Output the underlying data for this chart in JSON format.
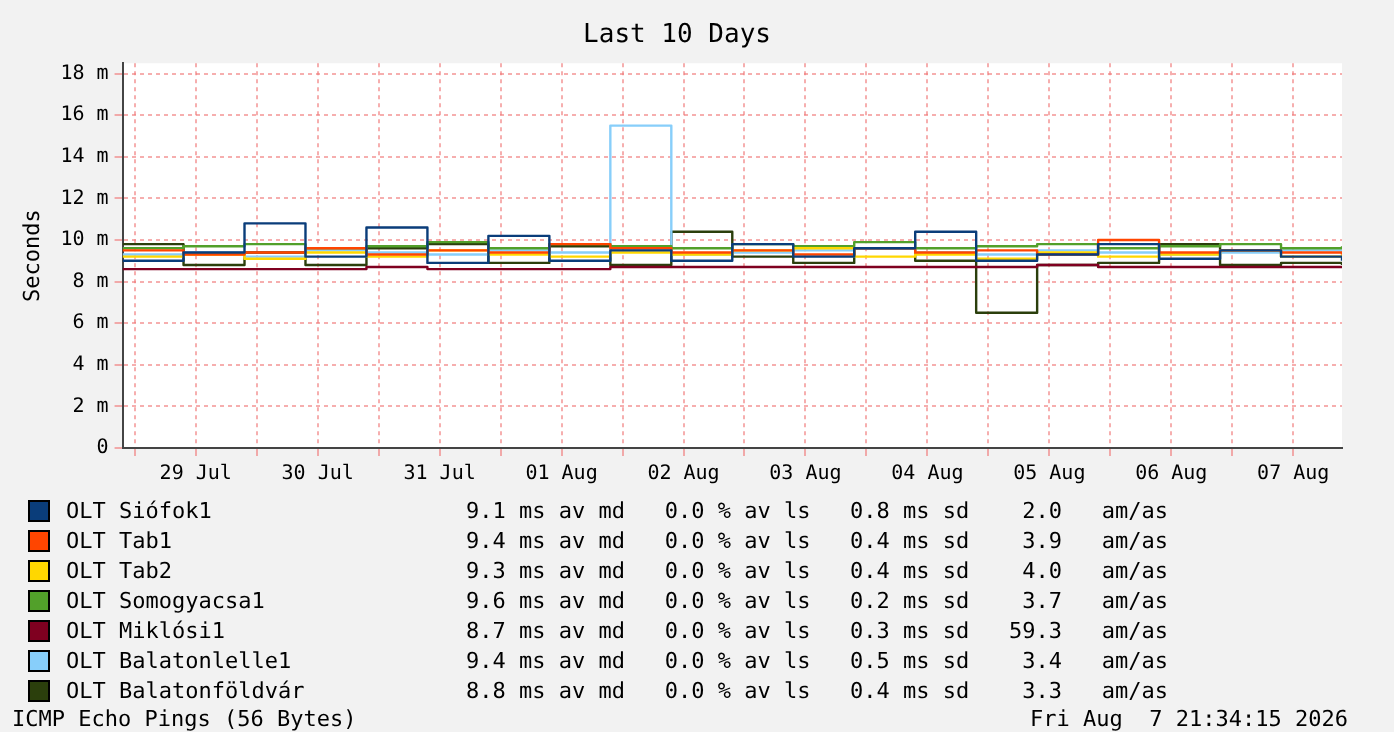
{
  "chart_data": {
    "type": "step",
    "title": "Last 10 Days",
    "ylabel": "Seconds",
    "x": [
      "--07-28T21:36",
      "--07-29T09:36",
      "--07-29T21:36",
      "--07-30T09:36",
      "--07-30T21:36",
      "--07-31T09:36",
      "--07-31T21:36",
      "--08-01T09:36",
      "--08-01T21:36",
      "--08-02T09:36",
      "--08-02T21:36",
      "--08-03T09:36",
      "--08-03T21:36",
      "--08-04T09:36",
      "--08-04T21:36",
      "--08-05T09:36",
      "--08-05T21:36",
      "--08-06T09:36",
      "--08-06T21:36",
      "--08-07T09:36",
      "--08-07T21:36"
    ],
    "xlim": [
      "--07-28T21:36",
      "--08-07T21:36"
    ],
    "xticks": [
      {
        "value": "--07-29",
        "label": null
      },
      {
        "value": "--07-29T12:00",
        "label": "29 Jul"
      },
      {
        "value": "--07-30",
        "label": null
      },
      {
        "value": "--07-30T12:00",
        "label": "30 Jul"
      },
      {
        "value": "--07-31",
        "label": null
      },
      {
        "value": "--07-31T12:00",
        "label": "31 Jul"
      },
      {
        "value": "--08-01",
        "label": null
      },
      {
        "value": "--08-01T12:00",
        "label": "01 Aug"
      },
      {
        "value": "--08-02",
        "label": null
      },
      {
        "value": "--08-02T12:00",
        "label": "02 Aug"
      },
      {
        "value": "--08-03",
        "label": null
      },
      {
        "value": "--08-03T12:00",
        "label": "03 Aug"
      },
      {
        "value": "--08-04",
        "label": null
      },
      {
        "value": "--08-04T12:00",
        "label": "04 Aug"
      },
      {
        "value": "--08-05",
        "label": null
      },
      {
        "value": "--08-05T12:00",
        "label": "05 Aug"
      },
      {
        "value": "--08-06",
        "label": null
      },
      {
        "value": "--08-06T12:00",
        "label": "06 Aug"
      },
      {
        "value": "--08-07",
        "label": null
      },
      {
        "value": "--08-07T12:00",
        "label": "07 Aug"
      }
    ],
    "ylim": [
      0,
      18.5
    ],
    "yticks": [
      0,
      {
        "value": 2,
        "label": "2 m"
      },
      {
        "value": 4,
        "label": "4 m"
      },
      {
        "value": 6,
        "label": "6 m"
      },
      {
        "value": 8,
        "label": "8 m"
      },
      {
        "value": 10,
        "label": "10 m"
      },
      {
        "value": 12,
        "label": "12 m"
      },
      {
        "value": 14,
        "label": "14 m"
      },
      {
        "value": 16,
        "label": "16 m"
      },
      {
        "value": 18,
        "label": "18 m"
      }
    ],
    "grid": true,
    "legend": "bottom",
    "marker": "none",
    "line_style": "solid",
    "series": [
      {
        "name": "OLT Siófok1",
        "color": "#0a3d7a",
        "values": [
          9.0,
          9.4,
          10.8,
          9.2,
          10.6,
          8.9,
          10.2,
          9.0,
          9.5,
          9.0,
          9.8,
          9.2,
          9.6,
          10.4,
          9.0,
          9.3,
          9.8,
          9.1,
          9.5,
          9.2,
          9.0
        ]
      },
      {
        "name": "OLT Tab1",
        "color": "#ff4500",
        "values": [
          9.5,
          9.3,
          9.4,
          9.6,
          9.3,
          9.5,
          9.4,
          9.8,
          9.6,
          9.4,
          9.5,
          9.3,
          9.6,
          9.4,
          9.5,
          9.3,
          10.0,
          9.4,
          9.5,
          9.4,
          9.3
        ]
      },
      {
        "name": "OLT Tab2",
        "color": "#ffd700",
        "values": [
          9.2,
          9.3,
          9.1,
          9.4,
          9.2,
          9.5,
          9.3,
          9.2,
          9.4,
          9.3,
          9.5,
          9.6,
          9.2,
          9.3,
          9.1,
          9.4,
          9.2,
          9.3,
          9.5,
          9.2,
          9.3
        ]
      },
      {
        "name": "OLT Somogyacsa1",
        "color": "#52a02a",
        "values": [
          9.6,
          9.7,
          9.8,
          9.6,
          9.7,
          9.9,
          9.6,
          9.8,
          9.7,
          9.6,
          9.8,
          9.7,
          9.9,
          9.6,
          9.7,
          9.8,
          9.6,
          9.7,
          9.8,
          9.6,
          9.7
        ]
      },
      {
        "name": "OLT Miklósi1",
        "color": "#7f0020",
        "values": [
          8.6,
          8.6,
          8.6,
          8.6,
          8.7,
          8.6,
          8.6,
          8.6,
          8.7,
          8.7,
          8.7,
          8.7,
          8.7,
          8.7,
          8.7,
          8.8,
          8.7,
          8.7,
          8.7,
          8.7,
          8.7
        ]
      },
      {
        "name": "OLT Balatonlelle1",
        "color": "#87cefa",
        "values": [
          9.3,
          9.4,
          9.2,
          9.5,
          9.4,
          9.3,
          9.5,
          9.4,
          15.5,
          9.3,
          9.4,
          9.5,
          9.6,
          9.4,
          9.3,
          9.5,
          9.4,
          9.3,
          9.4,
          9.5,
          9.4
        ]
      },
      {
        "name": "OLT Balatonföldvár",
        "color": "#2b3f0c",
        "values": [
          9.8,
          8.8,
          9.4,
          8.8,
          9.6,
          9.8,
          8.9,
          9.7,
          8.8,
          10.4,
          9.2,
          8.9,
          9.6,
          9.0,
          6.5,
          8.8,
          8.9,
          9.8,
          8.8,
          8.9,
          8.8
        ]
      }
    ],
    "annotations": [
      "9.1 ms av md   0.0 % av ls   0.8 ms sd    2.0   am/as",
      "9.4 ms av md   0.0 % av ls   0.4 ms sd    3.9   am/as",
      "9.3 ms av md   0.0 % av ls   0.4 ms sd    4.0   am/as",
      "9.6 ms av md   0.0 % av ls   0.2 ms sd    3.7   am/as",
      "8.7 ms av md   0.0 % av ls   0.3 ms sd   59.3   am/as",
      "9.4 ms av md   0.0 % av ls   0.5 ms sd    3.4   am/as",
      "8.8 ms av md   0.0 % av ls   0.4 ms sd    3.3   am/as",
      "ICMP Echo Pings (56 Bytes)",
      "Fri Aug  7 21:34:15 2026"
    ]
  }
}
